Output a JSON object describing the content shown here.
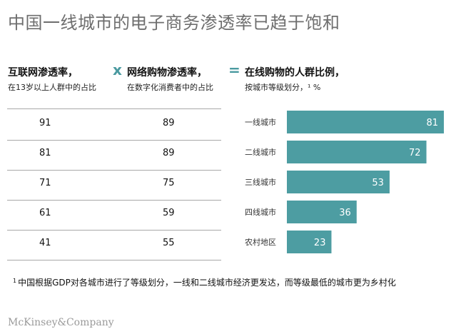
{
  "title": "中国一线城市的电子商务渗透率已趋于饱和",
  "headers": {
    "col1": {
      "main": "互联网渗透率，",
      "sub": "在13岁以上人群中的占比"
    },
    "op1": "x",
    "col2": {
      "main": "网络购物渗透率，",
      "sub": "在数字化消费者中的占比"
    },
    "op2": "=",
    "col3": {
      "main": "在线购物的人群比例，",
      "sub": "按城市等级划分，¹ %"
    }
  },
  "chart_data": {
    "type": "bar",
    "orientation": "horizontal",
    "categories": [
      "一线城市",
      "二线城市",
      "三线城市",
      "四线城市",
      "农村地区"
    ],
    "values": [
      81,
      72,
      53,
      36,
      23
    ],
    "xlim": [
      0,
      81
    ]
  },
  "table": {
    "internet_penetration": [
      91,
      81,
      71,
      61,
      41
    ],
    "online_shopping_penetration": [
      89,
      89,
      75,
      59,
      55
    ]
  },
  "colors": {
    "bar": "#4d9da2",
    "operator": "#4a9aa0"
  },
  "footnote": {
    "marker": "1",
    "text": "中国根据GDP对各城市进行了等级划分，一线和二线城市经济更发达，而等级最低的城市更为乡村化"
  },
  "brand": "McKinsey&Company"
}
